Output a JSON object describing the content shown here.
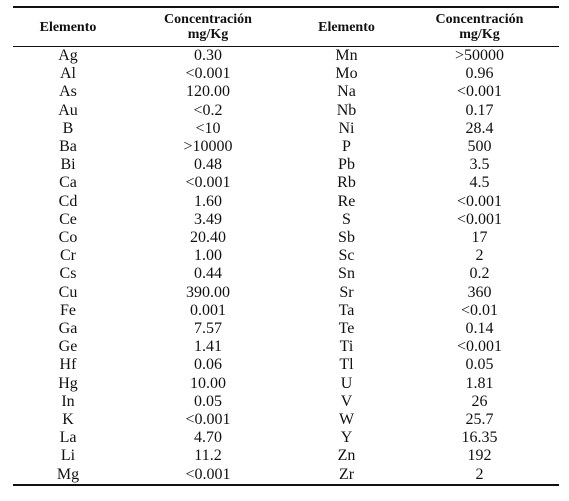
{
  "table": {
    "headers": [
      {
        "lines": [
          "Elemento"
        ]
      },
      {
        "lines": [
          "Concentración",
          "mg/Kg"
        ]
      },
      {
        "lines": [
          "Elemento"
        ]
      },
      {
        "lines": [
          "Concentración",
          "mg/Kg"
        ]
      }
    ],
    "rows": [
      [
        "Ag",
        "0.30",
        "Mn",
        ">50000"
      ],
      [
        "Al",
        "<0.001",
        "Mo",
        "0.96"
      ],
      [
        "As",
        "120.00",
        "Na",
        "<0.001"
      ],
      [
        "Au",
        "<0.2",
        "Nb",
        "0.17"
      ],
      [
        "B",
        "<10",
        "Ni",
        "28.4"
      ],
      [
        "Ba",
        ">10000",
        "P",
        "500"
      ],
      [
        "Bi",
        "0.48",
        "Pb",
        "3.5"
      ],
      [
        "Ca",
        "<0.001",
        "Rb",
        "4.5"
      ],
      [
        "Cd",
        "1.60",
        "Re",
        "<0.001"
      ],
      [
        "Ce",
        "3.49",
        "S",
        "<0.001"
      ],
      [
        "Co",
        "20.40",
        "Sb",
        "17"
      ],
      [
        "Cr",
        "1.00",
        "Sc",
        "2"
      ],
      [
        "Cs",
        "0.44",
        "Sn",
        "0.2"
      ],
      [
        "Cu",
        "390.00",
        "Sr",
        "360"
      ],
      [
        "Fe",
        "0.001",
        "Ta",
        "<0.01"
      ],
      [
        "Ga",
        "7.57",
        "Te",
        "0.14"
      ],
      [
        "Ge",
        "1.41",
        "Ti",
        "<0.001"
      ],
      [
        "Hf",
        "0.06",
        "Tl",
        "0.05"
      ],
      [
        "Hg",
        "10.00",
        "U",
        "1.81"
      ],
      [
        "In",
        "0.05",
        "V",
        "26"
      ],
      [
        "K",
        "<0.001",
        "W",
        "25.7"
      ],
      [
        "La",
        "4.70",
        "Y",
        "16.35"
      ],
      [
        "Li",
        "11.2",
        "Zn",
        "192"
      ],
      [
        "Mg",
        "<0.001",
        "Zr",
        "2"
      ]
    ]
  }
}
